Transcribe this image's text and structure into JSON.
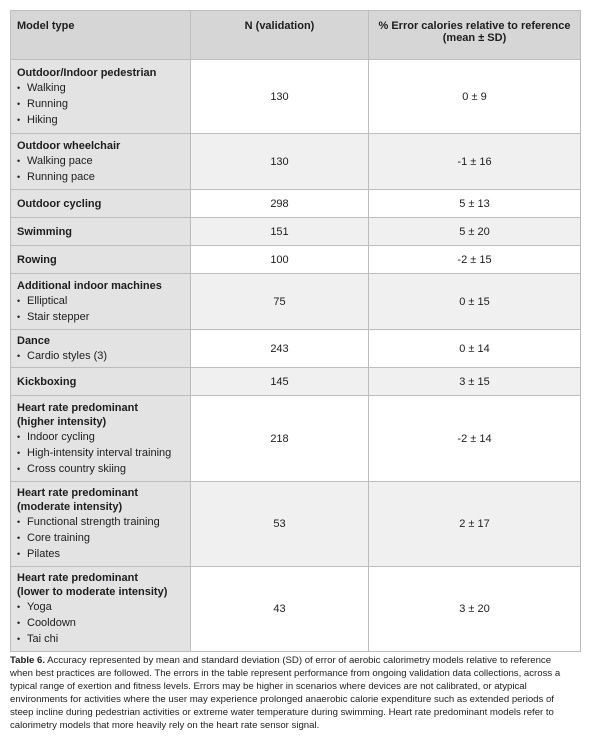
{
  "table": {
    "header": [
      "Model type",
      "N (validation)",
      "% Error calories relative to reference\n(mean ± SD)"
    ],
    "rows": [
      {
        "name": "Outdoor/Indoor pedestrian",
        "items": [
          "Walking",
          "Running",
          "Hiking"
        ],
        "n": "130",
        "error": "0 ± 9"
      },
      {
        "name": "Outdoor wheelchair",
        "items": [
          "Walking pace",
          "Running pace"
        ],
        "n": "130",
        "error": "-1 ± 16"
      },
      {
        "name": "Outdoor cycling",
        "items": [],
        "n": "298",
        "error": "5 ± 13"
      },
      {
        "name": "Swimming",
        "items": [],
        "n": "151",
        "error": "5 ± 20"
      },
      {
        "name": "Rowing",
        "items": [],
        "n": "100",
        "error": "-2 ± 15"
      },
      {
        "name": "Additional indoor machines",
        "items": [
          "Elliptical",
          "Stair stepper"
        ],
        "n": "75",
        "error": "0 ± 15"
      },
      {
        "name": "Dance",
        "items": [
          "Cardio styles (3)"
        ],
        "n": "243",
        "error": "0 ± 14"
      },
      {
        "name": "Kickboxing",
        "items": [],
        "n": "145",
        "error": "3 ± 15"
      },
      {
        "name": "Heart rate predominant\n(higher intensity)",
        "items": [
          "Indoor cycling",
          "High-intensity interval training",
          "Cross country skiing"
        ],
        "n": "218",
        "error": "-2 ± 14"
      },
      {
        "name": "Heart rate predominant\n(moderate intensity)",
        "items": [
          "Functional strength training",
          "Core training",
          "Pilates"
        ],
        "n": "53",
        "error": "2 ± 17"
      },
      {
        "name": "Heart rate predominant\n(lower to moderate intensity)",
        "items": [
          "Yoga",
          "Cooldown",
          "Tai chi"
        ],
        "n": "43",
        "error": "3 ± 20"
      }
    ]
  },
  "caption": {
    "label": "Table 6.",
    "text": " Accuracy represented by mean and standard deviation (SD) of error of aerobic calorimetry models relative to reference when best practices are followed. The errors in the table represent performance from ongoing validation data collections, across a typical range of exertion and fitness levels. Errors may be higher in scenarios where devices are not calibrated, or atypical environments for activities where the user may experience prolonged anaerobic calorie expenditure such as extended periods of steep incline during pedestrian activities or extreme water temperature during swimming. Heart rate predominant models refer to calorimetry models that more heavily rely on the heart rate sensor signal."
  }
}
